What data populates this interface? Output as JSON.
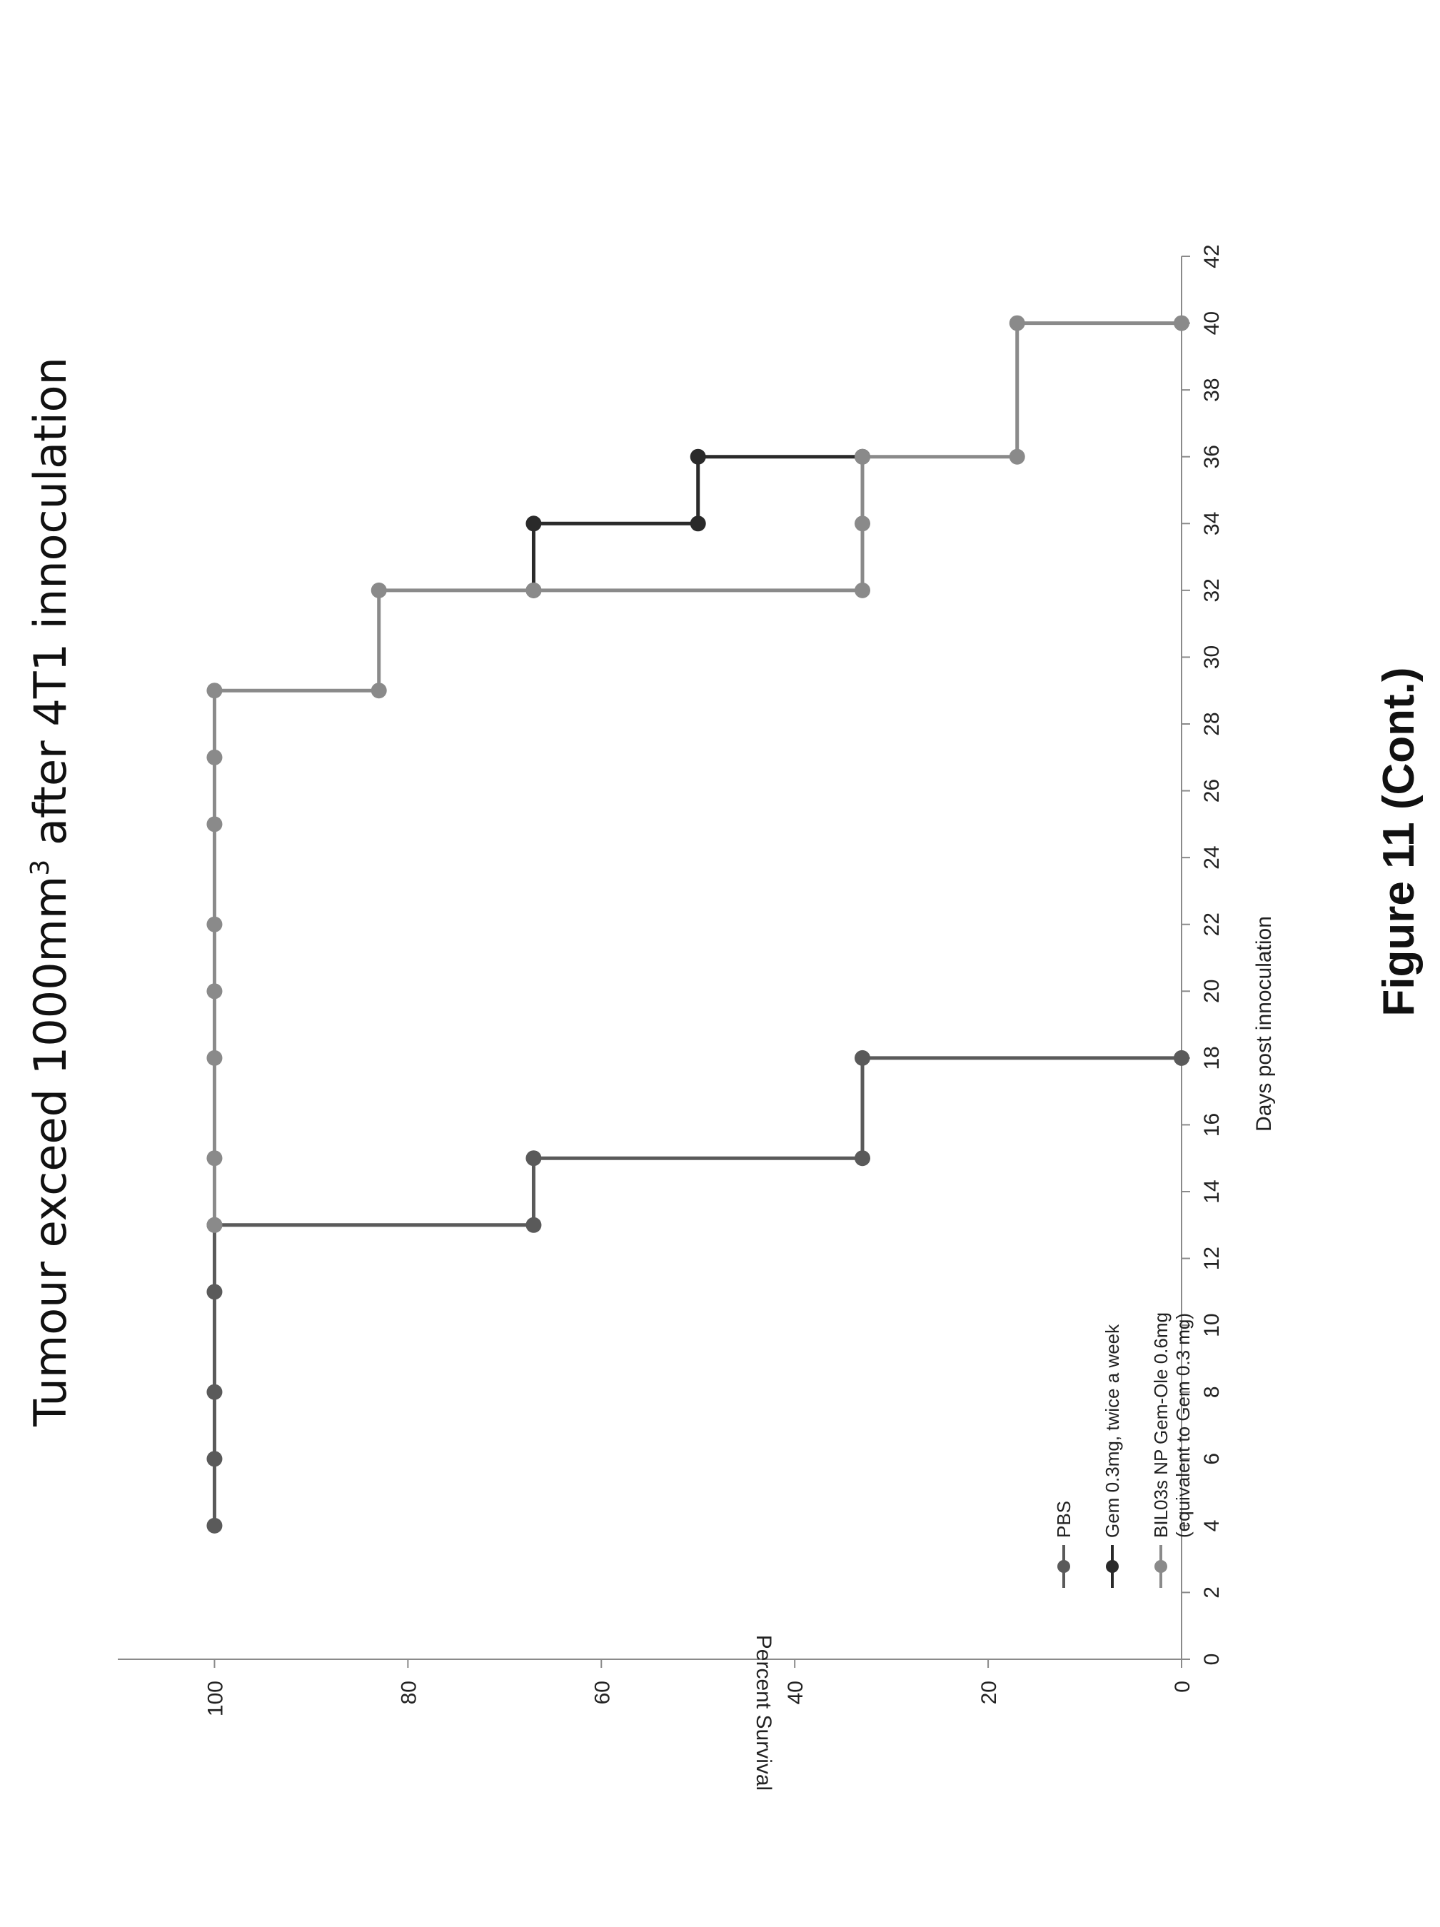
{
  "figure_caption": "Figure 11 (Cont.)",
  "chart_data": {
    "type": "line",
    "step": true,
    "title_main": "Tumour exceed 1000mm",
    "title_sup": "3",
    "title_rest": " after 4T1 innoculation",
    "xlabel": "Days post innoculation",
    "ylabel": "Percent Survival",
    "xlim": [
      0,
      42
    ],
    "ylim": [
      0,
      110
    ],
    "xticks": [
      0,
      2,
      4,
      6,
      8,
      10,
      12,
      14,
      16,
      18,
      20,
      22,
      24,
      26,
      28,
      30,
      32,
      34,
      36,
      38,
      40,
      42
    ],
    "yticks": [
      0,
      20,
      40,
      60,
      80,
      100
    ],
    "grid": false,
    "legend_position": "bottom-left",
    "series": [
      {
        "name": "PBS",
        "color": "#5a5a5a",
        "x": [
          4,
          6,
          8,
          11,
          13,
          13,
          15,
          15,
          18,
          18
        ],
        "y": [
          100,
          100,
          100,
          100,
          100,
          67,
          67,
          33,
          33,
          0
        ]
      },
      {
        "name": "Gem 0.3mg, twice a week",
        "color": "#2a2a2a",
        "x": [
          32,
          34,
          34,
          36,
          36
        ],
        "y": [
          67,
          67,
          50,
          50,
          33
        ]
      },
      {
        "name": "BIL03s NP Gem-Ole 0.6mg",
        "name_line2": "(equivalent to Gem 0.3 mg)",
        "color": "#8a8a8a",
        "x": [
          13,
          15,
          18,
          20,
          22,
          25,
          27,
          29,
          29,
          32,
          32,
          32,
          34,
          36,
          36,
          40,
          40
        ],
        "y": [
          100,
          100,
          100,
          100,
          100,
          100,
          100,
          100,
          83,
          83,
          67,
          33,
          33,
          33,
          17,
          17,
          0
        ]
      }
    ]
  }
}
